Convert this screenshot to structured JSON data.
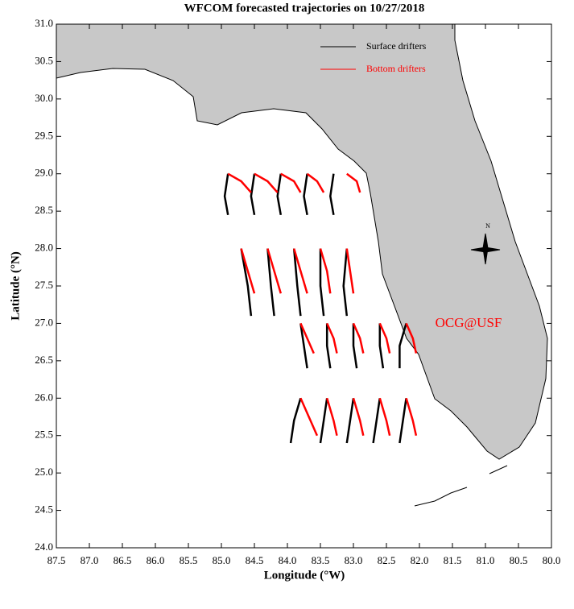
{
  "chart_data": {
    "type": "trajectory",
    "title": "WFCOM forecasted trajectories on 10/27/2018",
    "x_label": "Longitude (°W)",
    "y_label": "Latitude (°N)",
    "annotation": "OCG@USF",
    "xlim": [
      87.5,
      80.0
    ],
    "ylim": [
      24.0,
      31.0
    ],
    "xticks": [
      87.5,
      {
        "value": 87,
        "label": "87.0"
      },
      86.5,
      {
        "value": 86,
        "label": "86.0"
      },
      85.5,
      {
        "value": 85,
        "label": "85.0"
      },
      84.5,
      {
        "value": 84,
        "label": "84.0"
      },
      83.5,
      {
        "value": 83,
        "label": "83.0"
      },
      82.5,
      {
        "value": 82,
        "label": "82.0"
      },
      81.5,
      {
        "value": 81,
        "label": "81.0"
      },
      80.5,
      {
        "value": 80,
        "label": "80.0"
      }
    ],
    "yticks": [
      {
        "value": 24,
        "label": "24.0"
      },
      24.5,
      {
        "value": 25,
        "label": "25.0"
      },
      25.5,
      {
        "value": 26,
        "label": "26.0"
      },
      26.5,
      {
        "value": 27,
        "label": "27.0"
      },
      27.5,
      {
        "value": 28,
        "label": "28.0"
      },
      28.5,
      {
        "value": 29,
        "label": "29.0"
      },
      29.5,
      {
        "value": 30,
        "label": "30.0"
      },
      30.5,
      {
        "value": 31,
        "label": "31.0"
      }
    ],
    "series": [
      {
        "name": "Surface drifters",
        "color": "#000000",
        "tracks": [
          {
            "x": [
              84.9,
              84.95,
              84.9
            ],
            "y": [
              29,
              28.7,
              28.45
            ]
          },
          {
            "x": [
              84.5,
              84.55,
              84.5
            ],
            "y": [
              29,
              28.7,
              28.45
            ]
          },
          {
            "x": [
              84.1,
              84.15,
              84.1
            ],
            "y": [
              29,
              28.7,
              28.45
            ]
          },
          {
            "x": [
              83.7,
              83.75,
              83.7
            ],
            "y": [
              29,
              28.7,
              28.45
            ]
          },
          {
            "x": [
              83.3,
              83.35,
              83.3
            ],
            "y": [
              29,
              28.7,
              28.45
            ]
          },
          {
            "x": [
              84.7,
              84.6,
              84.55
            ],
            "y": [
              28,
              27.5,
              27.1
            ]
          },
          {
            "x": [
              84.3,
              84.25,
              84.2
            ],
            "y": [
              28,
              27.5,
              27.1
            ]
          },
          {
            "x": [
              83.9,
              83.85,
              83.8
            ],
            "y": [
              28,
              27.5,
              27.1
            ]
          },
          {
            "x": [
              83.5,
              83.5,
              83.45
            ],
            "y": [
              28,
              27.5,
              27.1
            ]
          },
          {
            "x": [
              83.1,
              83.15,
              83.1
            ],
            "y": [
              28,
              27.5,
              27.1
            ]
          },
          {
            "x": [
              83.8,
              83.75,
              83.7
            ],
            "y": [
              27,
              26.7,
              26.4
            ]
          },
          {
            "x": [
              83.4,
              83.4,
              83.35
            ],
            "y": [
              27,
              26.7,
              26.4
            ]
          },
          {
            "x": [
              83.0,
              83.0,
              82.95
            ],
            "y": [
              27,
              26.7,
              26.4
            ]
          },
          {
            "x": [
              82.6,
              82.6,
              82.55
            ],
            "y": [
              27,
              26.7,
              26.4
            ]
          },
          {
            "x": [
              82.2,
              82.3,
              82.3
            ],
            "y": [
              27,
              26.7,
              26.4
            ]
          },
          {
            "x": [
              83.8,
              83.9,
              83.95
            ],
            "y": [
              26,
              25.7,
              25.4
            ]
          },
          {
            "x": [
              83.4,
              83.45,
              83.5
            ],
            "y": [
              26,
              25.7,
              25.4
            ]
          },
          {
            "x": [
              83.0,
              83.05,
              83.1
            ],
            "y": [
              26,
              25.7,
              25.4
            ]
          },
          {
            "x": [
              82.6,
              82.65,
              82.7
            ],
            "y": [
              26,
              25.7,
              25.4
            ]
          },
          {
            "x": [
              82.2,
              82.25,
              82.3
            ],
            "y": [
              26,
              25.7,
              25.4
            ]
          }
        ]
      },
      {
        "name": "Bottom drifters",
        "color": "#ff0000",
        "tracks": [
          {
            "x": [
              84.9,
              84.7,
              84.55
            ],
            "y": [
              29,
              28.9,
              28.75
            ]
          },
          {
            "x": [
              84.5,
              84.3,
              84.15
            ],
            "y": [
              29,
              28.9,
              28.75
            ]
          },
          {
            "x": [
              84.1,
              83.9,
              83.8
            ],
            "y": [
              29,
              28.9,
              28.75
            ]
          },
          {
            "x": [
              83.7,
              83.55,
              83.45
            ],
            "y": [
              29,
              28.9,
              28.75
            ]
          },
          {
            "x": [
              83.1,
              82.95,
              82.9
            ],
            "y": [
              29,
              28.9,
              28.75
            ]
          },
          {
            "x": [
              84.7,
              84.6,
              84.5
            ],
            "y": [
              28,
              27.7,
              27.4
            ]
          },
          {
            "x": [
              84.3,
              84.2,
              84.1
            ],
            "y": [
              28,
              27.7,
              27.4
            ]
          },
          {
            "x": [
              83.9,
              83.8,
              83.7
            ],
            "y": [
              28,
              27.7,
              27.4
            ]
          },
          {
            "x": [
              83.5,
              83.4,
              83.35
            ],
            "y": [
              28,
              27.7,
              27.4
            ]
          },
          {
            "x": [
              83.1,
              83.05,
              83.0
            ],
            "y": [
              28,
              27.7,
              27.4
            ]
          },
          {
            "x": [
              83.8,
              83.7,
              83.6
            ],
            "y": [
              27,
              26.8,
              26.6
            ]
          },
          {
            "x": [
              83.4,
              83.3,
              83.25
            ],
            "y": [
              27,
              26.8,
              26.6
            ]
          },
          {
            "x": [
              83.0,
              82.9,
              82.85
            ],
            "y": [
              27,
              26.8,
              26.6
            ]
          },
          {
            "x": [
              82.6,
              82.5,
              82.45
            ],
            "y": [
              27,
              26.8,
              26.6
            ]
          },
          {
            "x": [
              82.2,
              82.1,
              82.05
            ],
            "y": [
              27,
              26.8,
              26.6
            ]
          },
          {
            "x": [
              83.8,
              83.65,
              83.55
            ],
            "y": [
              26,
              25.7,
              25.5
            ]
          },
          {
            "x": [
              83.4,
              83.3,
              83.25
            ],
            "y": [
              26,
              25.7,
              25.5
            ]
          },
          {
            "x": [
              83.0,
              82.9,
              82.85
            ],
            "y": [
              26,
              25.7,
              25.5
            ]
          },
          {
            "x": [
              82.6,
              82.5,
              82.45
            ],
            "y": [
              26,
              25.7,
              25.5
            ]
          },
          {
            "x": [
              82.2,
              82.1,
              82.05
            ],
            "y": [
              26,
              25.7,
              25.5
            ]
          }
        ]
      }
    ]
  }
}
